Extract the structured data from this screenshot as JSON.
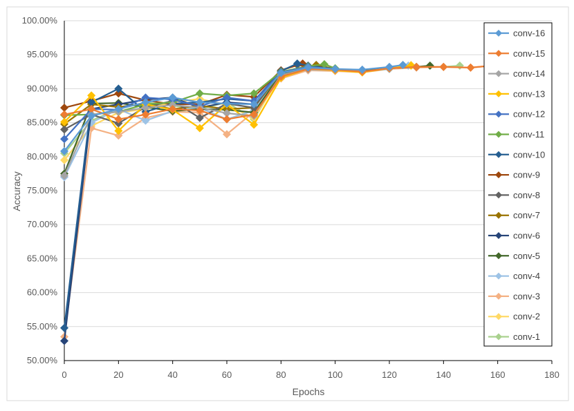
{
  "chart_data": {
    "type": "line",
    "xlabel": "Epochs",
    "ylabel": "Accuracy",
    "xlim": [
      0,
      180
    ],
    "ylim": [
      0.5,
      1.0
    ],
    "x_ticks": [
      "0",
      "20",
      "40",
      "60",
      "80",
      "100",
      "120",
      "140",
      "160",
      "180"
    ],
    "y_ticks": [
      "50.00%",
      "55.00%",
      "60.00%",
      "65.00%",
      "70.00%",
      "75.00%",
      "80.00%",
      "85.00%",
      "90.00%",
      "95.00%",
      "100.00%"
    ],
    "grid": "horizontal",
    "legend_position": "right",
    "series": [
      {
        "name": "conv-16",
        "color": "#5b9bd5",
        "x": [
          0,
          10,
          20,
          30,
          40,
          50,
          60,
          70,
          80,
          90,
          100,
          110,
          120,
          125
        ],
        "y": [
          0.808,
          0.86,
          0.87,
          0.88,
          0.887,
          0.88,
          0.878,
          0.877,
          0.923,
          0.931,
          0.929,
          0.928,
          0.932,
          0.935
        ]
      },
      {
        "name": "conv-15",
        "color": "#ed7d31",
        "x": [
          0,
          10,
          20,
          30,
          40,
          50,
          60,
          70,
          80,
          90,
          100,
          110,
          120,
          130,
          140,
          150,
          158
        ],
        "y": [
          0.862,
          0.87,
          0.855,
          0.862,
          0.87,
          0.868,
          0.855,
          0.862,
          0.918,
          0.929,
          0.928,
          0.925,
          0.93,
          0.932,
          0.932,
          0.931,
          0.934
        ]
      },
      {
        "name": "conv-14",
        "color": "#a5a5a5",
        "x": [
          0,
          10,
          20,
          30,
          40,
          50,
          60,
          70,
          80,
          90,
          100,
          110
        ],
        "y": [
          0.772,
          0.862,
          0.866,
          0.872,
          0.876,
          0.872,
          0.864,
          0.86,
          0.92,
          0.929,
          0.928,
          0.926
        ]
      },
      {
        "name": "conv-13",
        "color": "#ffc000",
        "x": [
          0,
          10,
          20,
          30,
          40,
          50,
          60,
          70,
          80,
          90,
          100,
          110,
          120,
          128
        ],
        "y": [
          0.851,
          0.89,
          0.838,
          0.877,
          0.869,
          0.842,
          0.877,
          0.847,
          0.916,
          0.929,
          0.927,
          0.924,
          0.93,
          0.934
        ]
      },
      {
        "name": "conv-12",
        "color": "#4472c4",
        "x": [
          0,
          10,
          20,
          30,
          40,
          50,
          60,
          70,
          80,
          90,
          100
        ],
        "y": [
          0.826,
          0.87,
          0.869,
          0.887,
          0.884,
          0.874,
          0.887,
          0.882,
          0.924,
          0.932,
          0.929
        ]
      },
      {
        "name": "conv-11",
        "color": "#70ad47",
        "x": [
          0,
          10,
          20,
          30,
          40,
          50,
          60,
          70,
          80,
          90,
          96,
          100
        ],
        "y": [
          0.861,
          0.862,
          0.866,
          0.877,
          0.88,
          0.893,
          0.89,
          0.893,
          0.925,
          0.933,
          0.936,
          0.93
        ]
      },
      {
        "name": "conv-10",
        "color": "#255e91",
        "x": [
          0,
          10,
          20,
          30,
          40,
          50,
          60,
          70,
          80,
          86,
          90,
          100
        ],
        "y": [
          0.548,
          0.88,
          0.9,
          0.866,
          0.878,
          0.88,
          0.885,
          0.882,
          0.926,
          0.937,
          0.934,
          0.929
        ]
      },
      {
        "name": "conv-9",
        "color": "#9e480e",
        "x": [
          0,
          10,
          20,
          30,
          40,
          50,
          60,
          70,
          80,
          88,
          90,
          100
        ],
        "y": [
          0.872,
          0.882,
          0.893,
          0.883,
          0.877,
          0.877,
          0.891,
          0.888,
          0.927,
          0.937,
          0.933,
          0.929
        ]
      },
      {
        "name": "conv-8",
        "color": "#636363",
        "x": [
          0,
          10,
          20,
          30,
          40,
          50,
          60,
          70,
          80,
          86,
          90,
          100
        ],
        "y": [
          0.84,
          0.862,
          0.849,
          0.873,
          0.882,
          0.857,
          0.878,
          0.872,
          0.927,
          0.935,
          0.932,
          0.929
        ]
      },
      {
        "name": "conv-7",
        "color": "#997300",
        "x": [
          0,
          10,
          20,
          30,
          40,
          50,
          60,
          70,
          80,
          90,
          93,
          100
        ],
        "y": [
          0.848,
          0.877,
          0.873,
          0.878,
          0.87,
          0.875,
          0.87,
          0.872,
          0.924,
          0.932,
          0.935,
          0.929
        ]
      },
      {
        "name": "conv-6",
        "color": "#264478",
        "x": [
          0,
          10,
          20,
          30,
          40,
          50,
          60,
          70,
          80,
          90,
          100
        ],
        "y": [
          0.529,
          0.87,
          0.877,
          0.884,
          0.887,
          0.872,
          0.88,
          0.877,
          0.925,
          0.931,
          0.928
        ]
      },
      {
        "name": "conv-5",
        "color": "#43682b",
        "x": [
          0,
          10,
          20,
          30,
          40,
          50,
          60,
          70,
          80,
          90,
          100,
          110,
          120,
          130,
          135
        ],
        "y": [
          0.775,
          0.878,
          0.879,
          0.873,
          0.867,
          0.87,
          0.869,
          0.865,
          0.922,
          0.93,
          0.928,
          0.926,
          0.93,
          0.932,
          0.934
        ]
      },
      {
        "name": "conv-4",
        "color": "#9dc3e6",
        "x": [
          0,
          10,
          20,
          30,
          40,
          50,
          60,
          70,
          80,
          90,
          100,
          110,
          120,
          127
        ],
        "y": [
          0.77,
          0.85,
          0.87,
          0.853,
          0.867,
          0.872,
          0.855,
          0.868,
          0.92,
          0.928,
          0.927,
          0.925,
          0.929,
          0.934
        ]
      },
      {
        "name": "conv-3",
        "color": "#f4b183",
        "x": [
          0,
          10,
          20,
          30,
          40,
          50,
          60,
          70,
          80,
          90,
          100,
          110,
          120,
          130,
          140,
          150,
          158
        ],
        "y": [
          0.535,
          0.842,
          0.831,
          0.857,
          0.866,
          0.865,
          0.833,
          0.866,
          0.915,
          0.927,
          0.926,
          0.924,
          0.929,
          0.931,
          0.932,
          0.931,
          0.934
        ]
      },
      {
        "name": "conv-2",
        "color": "#ffd966",
        "x": [
          0,
          10,
          20,
          30,
          40,
          50,
          60,
          70,
          80,
          90,
          100,
          110,
          120,
          128
        ],
        "y": [
          0.795,
          0.845,
          0.865,
          0.87,
          0.88,
          0.885,
          0.876,
          0.857,
          0.918,
          0.928,
          0.927,
          0.925,
          0.929,
          0.935
        ]
      },
      {
        "name": "conv-1",
        "color": "#a9d18e",
        "x": [
          0,
          10,
          20,
          30,
          40,
          50,
          60,
          70,
          80,
          90,
          100,
          110,
          120,
          130,
          140,
          146
        ],
        "y": [
          0.805,
          0.853,
          0.87,
          0.88,
          0.875,
          0.87,
          0.88,
          0.855,
          0.921,
          0.929,
          0.928,
          0.926,
          0.931,
          0.932,
          0.932,
          0.934
        ]
      }
    ]
  }
}
